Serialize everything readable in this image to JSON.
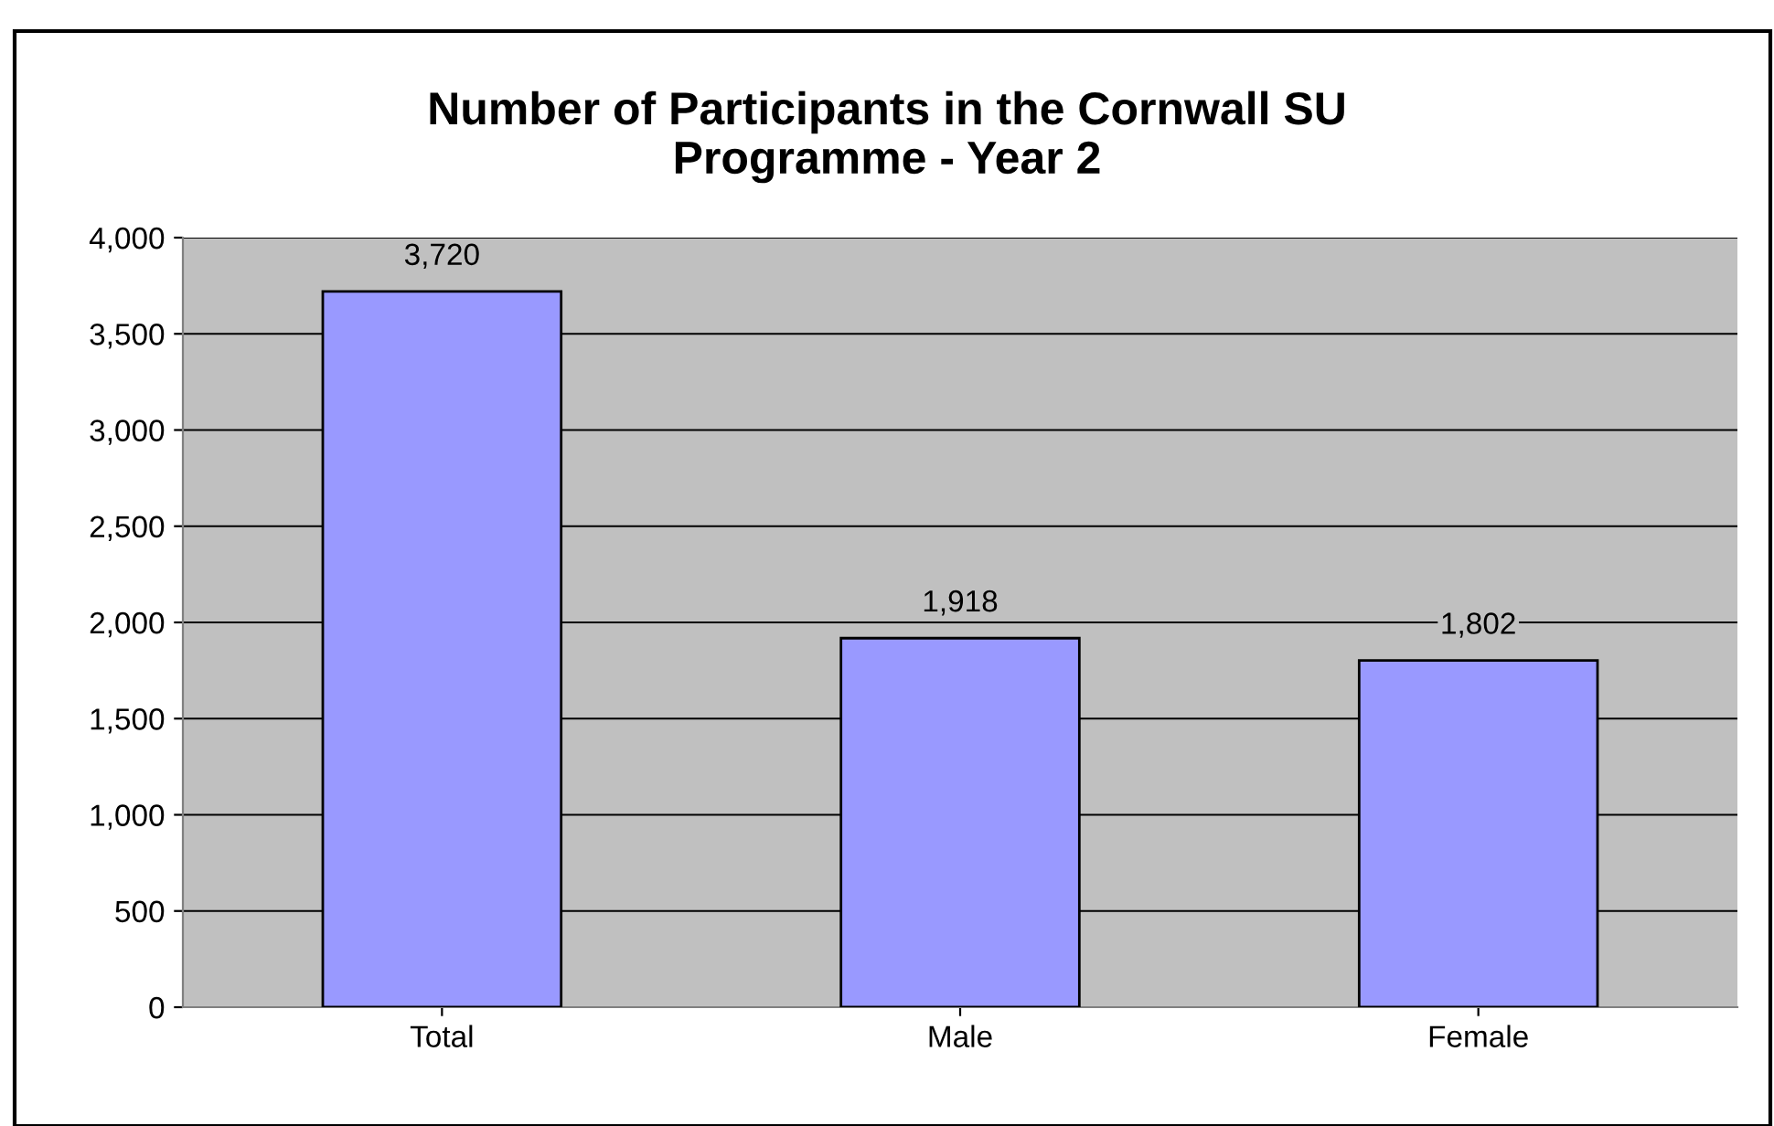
{
  "chart_data": {
    "type": "bar",
    "title": "Number of Participants in the Cornwall SU\nProgramme - Year 2",
    "categories": [
      "Total",
      "Male",
      "Female"
    ],
    "values": [
      3720,
      1918,
      1802
    ],
    "color": "#9999ff",
    "ylim": [
      0,
      4000
    ],
    "yticks": [
      {
        "value": 0,
        "label": "0"
      },
      {
        "value": 500,
        "label": "500"
      },
      {
        "value": 1000,
        "label": "1,000"
      },
      {
        "value": 1500,
        "label": "1,500"
      },
      {
        "value": 2000,
        "label": "2,000"
      },
      {
        "value": 2500,
        "label": "2,500"
      },
      {
        "value": 3000,
        "label": "3,000"
      },
      {
        "value": 3500,
        "label": "3,500"
      },
      {
        "value": 4000,
        "label": "4,000"
      }
    ],
    "grid": "y",
    "legend": false,
    "value_labels": [
      "3,720",
      "1,918",
      "1,802"
    ]
  }
}
